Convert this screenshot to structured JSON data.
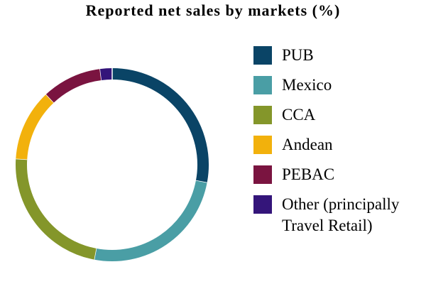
{
  "chart_data": {
    "type": "donut",
    "title": "Reported net sales by markets (%)",
    "categories": [
      "PUB",
      "Mexico",
      "CCA",
      "Andean",
      "PEBAC",
      "Other (principally Travel Retail)"
    ],
    "values": [
      28,
      25,
      23,
      12,
      10,
      2
    ],
    "colors": [
      "#0a4466",
      "#4a9ea5",
      "#84962a",
      "#f2b10c",
      "#7a1440",
      "#34157a"
    ]
  }
}
